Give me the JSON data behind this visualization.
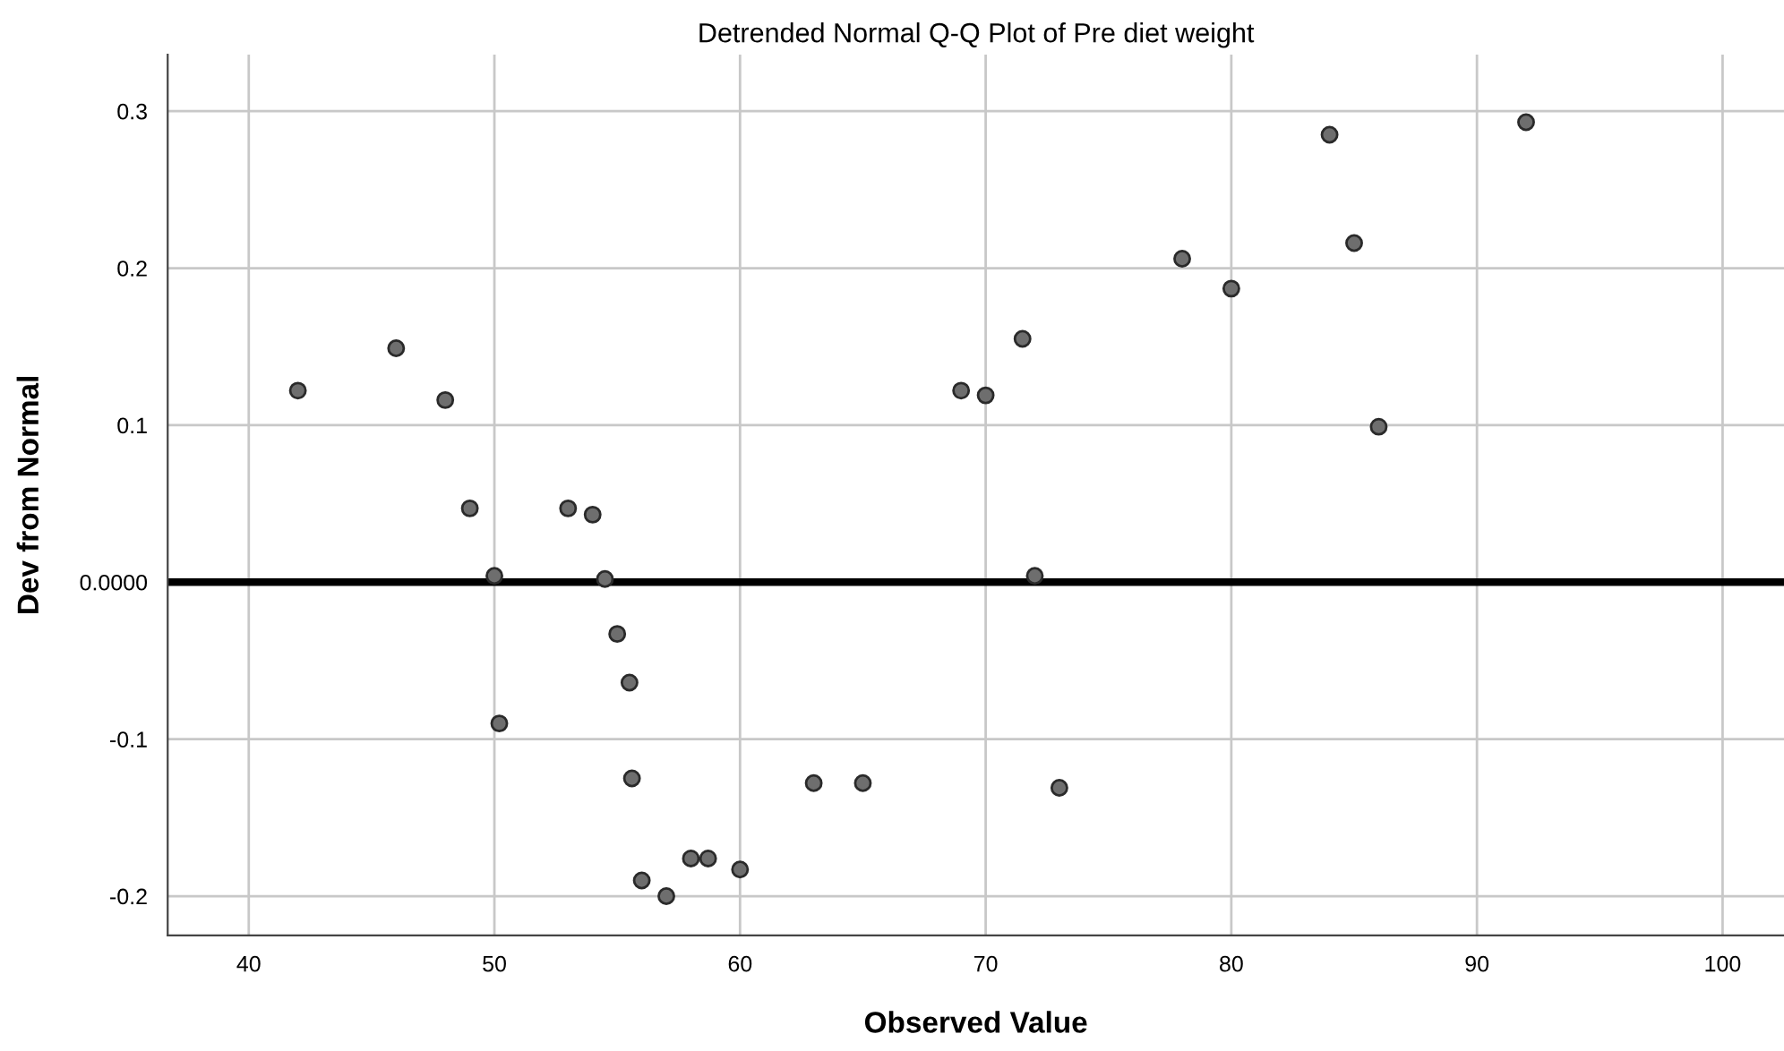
{
  "chart_data": {
    "type": "scatter",
    "title": "Detrended Normal Q-Q Plot of Pre diet weight",
    "xlabel": "Observed Value",
    "ylabel": "Dev from Normal",
    "x": [
      42,
      46,
      48,
      49,
      50,
      50.2,
      53,
      54,
      54.5,
      55,
      55.5,
      55.6,
      56,
      57,
      58,
      58.7,
      60,
      63,
      65,
      69,
      70,
      71.5,
      72,
      73,
      78,
      80,
      84,
      85,
      86,
      92
    ],
    "series": [
      {
        "color": "#6e6e6e",
        "values": [
          0.122,
          0.149,
          0.116,
          0.047,
          0.004,
          -0.09,
          0.047,
          0.043,
          0.002,
          -0.033,
          -0.064,
          -0.125,
          -0.19,
          -0.2,
          -0.176,
          -0.176,
          -0.183,
          -0.128,
          -0.128,
          0.122,
          0.119,
          0.155,
          0.004,
          -0.131,
          0.206,
          0.187,
          0.285,
          0.216,
          0.099,
          0.293
        ]
      }
    ],
    "xlim": [
      36.7,
      102.5
    ],
    "ylim": [
      -0.225,
      0.336
    ],
    "xticks": [
      40,
      50,
      60,
      70,
      80,
      90,
      100
    ],
    "yticks": [
      -0.2,
      -0.1,
      {
        "value": 0,
        "label": "0.0000"
      },
      0.1,
      0.2,
      0.3
    ],
    "ref_lines": [
      {
        "axis": "y",
        "value": 0,
        "color": "#000000"
      }
    ],
    "grid": true,
    "marker": "circle"
  }
}
